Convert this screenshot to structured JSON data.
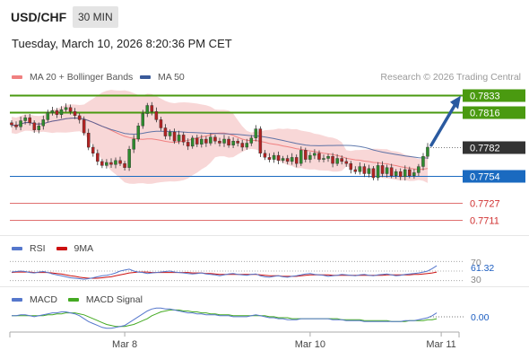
{
  "header": {
    "pair": "USD/CHF",
    "interval": "30 MIN",
    "datetime": "Tuesday, March 10, 2026 8:20:36 PM CET"
  },
  "legend": {
    "bollinger_label": "MA 20 + Bollinger Bands",
    "ma50_label": "MA 50",
    "research": "Research © 2026 Trading Central"
  },
  "colors": {
    "up": "#2e8b2e",
    "down": "#b22222",
    "ma20": "#f08080",
    "ma50": "#3a5a9a",
    "band": "#f6c9c9",
    "resistance": "#4a9a10",
    "support": "#1a6ac0",
    "weak": "#e07070",
    "last": "#333333",
    "arrow": "#2a5aa0",
    "rsi": "#5577cc",
    "rsi_ma": "#cc1111",
    "macd": "#5577cc",
    "macd_signal": "#44aa22"
  },
  "rsi_legend": {
    "rsi": "RSI",
    "ma": "9MA",
    "value": "61.32",
    "tick70": "70",
    "tick30": "30"
  },
  "macd_legend": {
    "macd": "MACD",
    "signal": "MACD Signal",
    "value": "0.00"
  },
  "chart_data": {
    "type": "candlestick",
    "price_range": [
      0.77,
      0.7842
    ],
    "x_labels": [
      "Mar 8",
      "Mar 10",
      "Mar 11"
    ],
    "x_label_bar_index": [
      25,
      66,
      95
    ],
    "levels": [
      {
        "value": 0.7833,
        "label": "0.7833",
        "kind": "resistance"
      },
      {
        "value": 0.7816,
        "label": "0.7816",
        "kind": "resistance"
      },
      {
        "value": 0.7782,
        "label": "0.7782",
        "kind": "last"
      },
      {
        "value": 0.7754,
        "label": "0.7754",
        "kind": "support"
      },
      {
        "value": 0.7727,
        "label": "0.7727",
        "kind": "weak"
      },
      {
        "value": 0.7711,
        "label": "0.7711",
        "kind": "weak"
      }
    ],
    "closes": [
      0.7804,
      0.7802,
      0.7808,
      0.7811,
      0.7806,
      0.7799,
      0.7803,
      0.7809,
      0.7816,
      0.7818,
      0.7814,
      0.7819,
      0.7821,
      0.7817,
      0.7813,
      0.7809,
      0.7796,
      0.7782,
      0.7776,
      0.7768,
      0.7764,
      0.7767,
      0.7765,
      0.7769,
      0.7766,
      0.7762,
      0.778,
      0.779,
      0.7803,
      0.7815,
      0.7823,
      0.7817,
      0.7809,
      0.7801,
      0.7793,
      0.7797,
      0.7788,
      0.7794,
      0.7787,
      0.7783,
      0.7791,
      0.7785,
      0.779,
      0.7786,
      0.7792,
      0.7788,
      0.7786,
      0.779,
      0.7784,
      0.7788,
      0.7786,
      0.7782,
      0.7786,
      0.7791,
      0.78,
      0.7776,
      0.7772,
      0.777,
      0.7774,
      0.7769,
      0.7771,
      0.7768,
      0.7772,
      0.7766,
      0.7779,
      0.777,
      0.7774,
      0.7776,
      0.777,
      0.7771,
      0.7773,
      0.7766,
      0.7771,
      0.7768,
      0.7766,
      0.776,
      0.7758,
      0.7763,
      0.7756,
      0.7761,
      0.7752,
      0.7764,
      0.7756,
      0.7762,
      0.7754,
      0.7758,
      0.7753,
      0.776,
      0.7754,
      0.7757,
      0.7763,
      0.7773,
      0.7782
    ],
    "rsi_range": [
      20,
      80
    ],
    "rsi": [
      48,
      49,
      50,
      49,
      47,
      46,
      48,
      49,
      47,
      44,
      42,
      40,
      38,
      36,
      35,
      34,
      33,
      34,
      36,
      38,
      40,
      41,
      43,
      46,
      50,
      52,
      54,
      50,
      48,
      47,
      45,
      46,
      47,
      48,
      49,
      50,
      48,
      47,
      46,
      45,
      44,
      45,
      46,
      44,
      43,
      42,
      40,
      42,
      44,
      45,
      43,
      42,
      41,
      43,
      44,
      40,
      38,
      37,
      39,
      40,
      38,
      37,
      39,
      40,
      42,
      44,
      45,
      43,
      42,
      41,
      39,
      40,
      41,
      43,
      42,
      41,
      40,
      42,
      43,
      41,
      40,
      42,
      43,
      44,
      42,
      40,
      41,
      43,
      44,
      45,
      46,
      48,
      50,
      55,
      61
    ],
    "rsi_ma": [
      47,
      48,
      48,
      48,
      48,
      47,
      47,
      47,
      47,
      46,
      45,
      44,
      42,
      40,
      39,
      37,
      36,
      35,
      35,
      35,
      36,
      37,
      38,
      40,
      42,
      44,
      46,
      47,
      48,
      48,
      48,
      47,
      47,
      47,
      47,
      47,
      47,
      47,
      47,
      47,
      46,
      46,
      46,
      45,
      45,
      44,
      43,
      43,
      43,
      43,
      43,
      43,
      43,
      43,
      43,
      42,
      41,
      40,
      40,
      40,
      39,
      39,
      39,
      39,
      40,
      41,
      42,
      42,
      42,
      42,
      42,
      41,
      41,
      41,
      41,
      41,
      41,
      41,
      41,
      41,
      41,
      41,
      41,
      42,
      42,
      42,
      42,
      42,
      42,
      43,
      43,
      44,
      45,
      46,
      48
    ],
    "macd_range": [
      -0.0014,
      0.0012
    ],
    "macd": [
      0.0001,
      0.0001,
      0.0002,
      0.0002,
      0.0001,
      0.0,
      0.0001,
      0.0002,
      0.0003,
      0.0004,
      0.0004,
      0.0005,
      0.0005,
      0.0004,
      0.0003,
      0.0001,
      -0.0002,
      -0.0005,
      -0.0007,
      -0.0009,
      -0.0011,
      -0.0012,
      -0.0012,
      -0.0011,
      -0.001,
      -0.0009,
      -0.0006,
      -0.0003,
      0.0,
      0.0003,
      0.0006,
      0.0008,
      0.0009,
      0.0009,
      0.0008,
      0.0008,
      0.0007,
      0.0006,
      0.0005,
      0.0004,
      0.0004,
      0.0003,
      0.0003,
      0.0002,
      0.0002,
      0.0002,
      0.0001,
      0.0001,
      0.0001,
      0.0,
      0.0,
      0.0,
      0.0,
      0.0001,
      0.0002,
      0.0001,
      0.0,
      -0.0001,
      -0.0001,
      -0.0002,
      -0.0002,
      -0.0003,
      -0.0003,
      -0.0003,
      -0.0002,
      -0.0002,
      -0.0002,
      -0.0002,
      -0.0002,
      -0.0002,
      -0.0002,
      -0.0003,
      -0.0003,
      -0.0003,
      -0.0004,
      -0.0004,
      -0.0004,
      -0.0004,
      -0.0005,
      -0.0005,
      -0.0005,
      -0.0005,
      -0.0005,
      -0.0005,
      -0.0005,
      -0.0005,
      -0.0005,
      -0.0004,
      -0.0004,
      -0.0004,
      -0.0003,
      -0.0002,
      -0.0001,
      0.0001,
      0.0004
    ],
    "macd_signal": [
      0.0001,
      0.0001,
      0.0001,
      0.0001,
      0.0001,
      0.0001,
      0.0001,
      0.0001,
      0.0002,
      0.0002,
      0.0003,
      0.0003,
      0.0004,
      0.0004,
      0.0004,
      0.0003,
      0.0002,
      0.0,
      -0.0002,
      -0.0004,
      -0.0006,
      -0.0008,
      -0.0009,
      -0.001,
      -0.001,
      -0.001,
      -0.0009,
      -0.0008,
      -0.0006,
      -0.0004,
      -0.0002,
      0.0001,
      0.0003,
      0.0005,
      0.0006,
      0.0007,
      0.0007,
      0.0007,
      0.0006,
      0.0006,
      0.0005,
      0.0005,
      0.0004,
      0.0004,
      0.0003,
      0.0003,
      0.0002,
      0.0002,
      0.0002,
      0.0001,
      0.0001,
      0.0001,
      0.0001,
      0.0001,
      0.0001,
      0.0001,
      0.0001,
      0.0,
      0.0,
      -0.0001,
      -0.0001,
      -0.0001,
      -0.0002,
      -0.0002,
      -0.0002,
      -0.0002,
      -0.0002,
      -0.0002,
      -0.0002,
      -0.0002,
      -0.0002,
      -0.0002,
      -0.0002,
      -0.0003,
      -0.0003,
      -0.0003,
      -0.0003,
      -0.0003,
      -0.0004,
      -0.0004,
      -0.0004,
      -0.0004,
      -0.0004,
      -0.0004,
      -0.0005,
      -0.0005,
      -0.0005,
      -0.0005,
      -0.0004,
      -0.0004,
      -0.0004,
      -0.0004,
      -0.0003,
      -0.0003,
      -0.0002
    ]
  }
}
